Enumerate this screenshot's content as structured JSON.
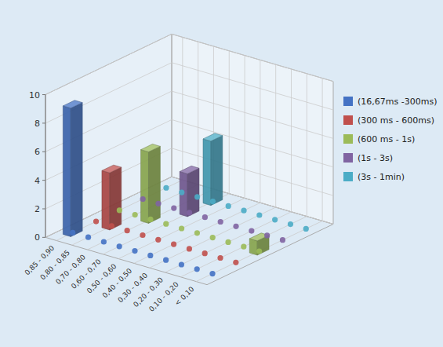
{
  "chart_data": {
    "type": "bar3d",
    "categories": [
      "0,85 - 0,90",
      "0,80 - 0,85",
      "0,70 - 0,80",
      "0,60 - 0,70",
      "0,50 - 0,60",
      "0,40 - 0,50",
      "0,30 - 0,40",
      "0,20 - 0,30",
      "0,10 - 0,20",
      "< 0,10"
    ],
    "series": [
      {
        "name": "(16,67ms -300ms)",
        "color": "#4472C4",
        "values": [
          9,
          0,
          0,
          0,
          0,
          0,
          0,
          0,
          0,
          0
        ]
      },
      {
        "name": "(300 ms - 600ms)",
        "color": "#C0504D",
        "values": [
          0,
          4,
          0,
          0,
          0,
          0,
          0,
          0,
          0,
          0
        ]
      },
      {
        "name": "(600 ms - 1s)",
        "color": "#9BBB59",
        "values": [
          0,
          0,
          5,
          0,
          0,
          0,
          0,
          0,
          0,
          1
        ]
      },
      {
        "name": "(1s - 3s)",
        "color": "#8064A2",
        "values": [
          0,
          0,
          0,
          3,
          0,
          0,
          0,
          0,
          0,
          0
        ]
      },
      {
        "name": "(3s - 1min)",
        "color": "#4BACC6",
        "values": [
          0,
          0,
          0,
          4.5,
          0,
          0,
          0,
          0,
          0,
          0
        ]
      }
    ],
    "ylim": [
      0,
      10
    ],
    "yticks": [
      0,
      2,
      4,
      6,
      8,
      10
    ],
    "grid": true,
    "legend": "right"
  }
}
